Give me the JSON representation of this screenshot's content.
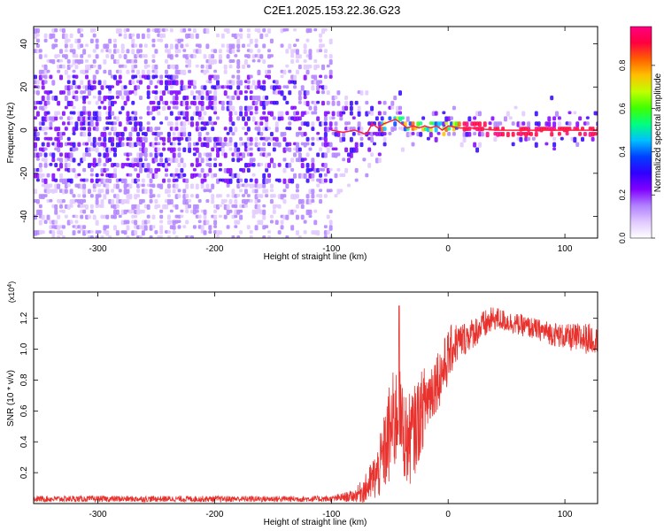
{
  "figure_title": "C2E1.2025.153.22.36.G23",
  "chart_data": [
    {
      "type": "heatmap",
      "xlabel": "Height of straight line (km)",
      "ylabel": "Frequency (Hz)",
      "xlim": [
        -355,
        128
      ],
      "ylim": [
        -50,
        48
      ],
      "xticks": [
        -300,
        -200,
        -100,
        0,
        100
      ],
      "yticks": [
        -40,
        -20,
        0,
        20,
        40
      ],
      "colorbar": {
        "label": "Normalized spectral amplitude",
        "range": [
          0,
          0.98
        ],
        "ticks": [
          0.0,
          0.2,
          0.4,
          0.6,
          0.8
        ],
        "tick_labels": [
          "0.0",
          "0.2",
          "0.4",
          "0.6",
          "0.8"
        ],
        "colors": [
          "#ffffff",
          "#e0c8ff",
          "#b080ff",
          "#8000ff",
          "#3000ff",
          "#0040ff",
          "#00c0ff",
          "#00ff80",
          "#40ff00",
          "#c0ff00",
          "#ffc000",
          "#ff6000",
          "#ff0040",
          "#ff0080"
        ]
      },
      "ridge": {
        "x": [
          -100,
          -90,
          -80,
          -70,
          -65,
          -60,
          -55,
          -50,
          -45,
          -40,
          -35,
          -30,
          -25,
          -20,
          -15,
          -10,
          -5,
          0,
          10,
          20,
          40,
          60,
          80,
          100,
          128
        ],
        "y": [
          0,
          -1,
          0,
          -2,
          3,
          1,
          3,
          4,
          5,
          3,
          1,
          2,
          1,
          2,
          1,
          2,
          0,
          2,
          1,
          1,
          0,
          0,
          0,
          0,
          0
        ]
      },
      "grid": false
    },
    {
      "type": "line",
      "xlabel": "Height of straight line (km)",
      "ylabel": "SNR (10 * v/v)",
      "y_multiplier": "(x10",
      "y_multiplier_exp": "4",
      "y_multiplier_close": ")",
      "xlim": [
        -355,
        128
      ],
      "ylim": [
        0,
        1.37
      ],
      "xticks": [
        -300,
        -200,
        -100,
        0,
        100
      ],
      "yticks": [
        0.2,
        0.4,
        0.6,
        0.8,
        1.0,
        1.2
      ],
      "ytick_labels": [
        "0.2",
        "0.4",
        "0.6",
        "0.8",
        "1.0",
        "1.2"
      ],
      "color": "#e8322e",
      "series": [
        {
          "x": [
            -355,
            -200,
            -100,
            -80,
            -70,
            -60,
            -55,
            -50,
            -45,
            -42,
            -40,
            -35,
            -30,
            -25,
            -20,
            -15,
            -10,
            -5,
            0,
            5,
            10,
            20,
            30,
            40,
            50,
            60,
            70,
            80,
            90,
            100,
            110,
            120,
            128
          ],
          "y": [
            0.03,
            0.03,
            0.03,
            0.05,
            0.1,
            0.2,
            0.32,
            0.45,
            0.55,
            0.6,
            0.5,
            0.4,
            0.45,
            0.55,
            0.65,
            0.72,
            0.8,
            0.85,
            0.95,
            1.03,
            1.05,
            1.1,
            1.15,
            1.2,
            1.18,
            1.16,
            1.14,
            1.12,
            1.1,
            1.08,
            1.07,
            1.07,
            1.06
          ],
          "spread": [
            0.02,
            0.02,
            0.02,
            0.04,
            0.1,
            0.18,
            0.25,
            0.35,
            0.35,
            0.3,
            0.3,
            0.3,
            0.3,
            0.28,
            0.25,
            0.22,
            0.2,
            0.2,
            0.18,
            0.15,
            0.12,
            0.1,
            0.1,
            0.08,
            0.07,
            0.07,
            0.07,
            0.07,
            0.08,
            0.08,
            0.1,
            0.1,
            0.08
          ],
          "peak": {
            "x": -42,
            "y": 1.28
          }
        }
      ],
      "grid": false
    }
  ]
}
